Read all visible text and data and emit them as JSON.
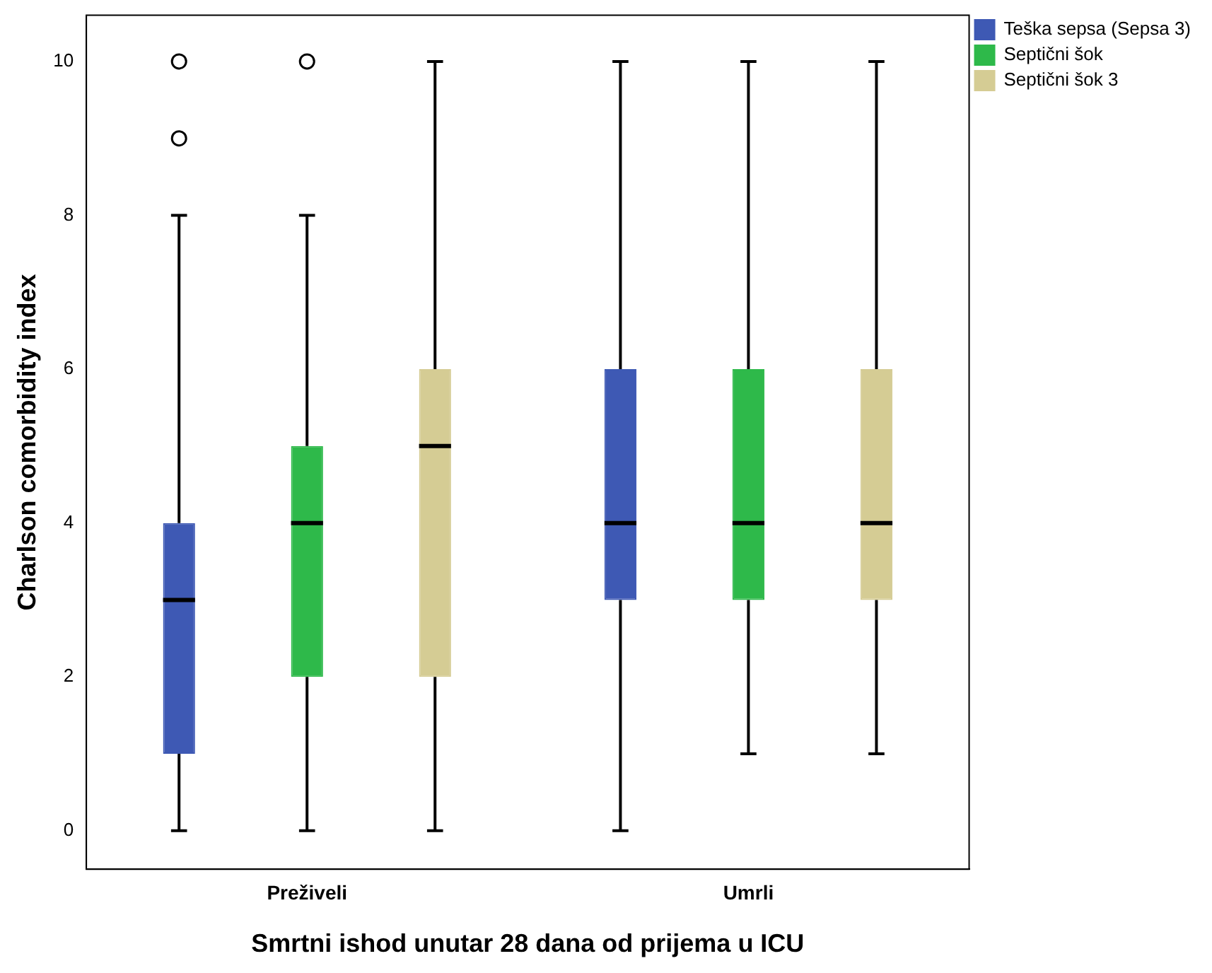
{
  "chart_data": {
    "type": "box",
    "xlabel": "Smrtni ishod unutar 28 dana od prijema u ICU",
    "ylabel": "Charlson comorbidity index",
    "categories": [
      "Preživeli",
      "Umrli"
    ],
    "series": [
      {
        "name": "Teška sepsa (Sepsa 3)",
        "color": "#3e59b4",
        "boxes": [
          {
            "low": 0,
            "q1": 1,
            "median": 3,
            "q3": 4,
            "high": 8,
            "outliers": [
              9,
              10
            ]
          },
          {
            "low": 0,
            "q1": 3,
            "median": 4,
            "q3": 6,
            "high": 10
          }
        ]
      },
      {
        "name": "Septični šok",
        "color": "#2eb94a",
        "boxes": [
          {
            "low": 0,
            "q1": 2,
            "median": 4,
            "q3": 5,
            "high": 8,
            "outliers": [
              10
            ]
          },
          {
            "low": 1,
            "q1": 3,
            "median": 4,
            "q3": 6,
            "high": 10
          }
        ]
      },
      {
        "name": "Septični šok 3",
        "color": "#d5cc94",
        "boxes": [
          {
            "low": 0,
            "q1": 2,
            "median": 5,
            "q3": 6,
            "high": 10
          },
          {
            "low": 1,
            "q1": 3,
            "median": 4,
            "q3": 6,
            "high": 10
          }
        ]
      }
    ],
    "ylim": [
      -0.5,
      10.6
    ],
    "yticks": [
      0,
      2,
      4,
      6,
      8,
      10
    ],
    "legend": "top right"
  }
}
